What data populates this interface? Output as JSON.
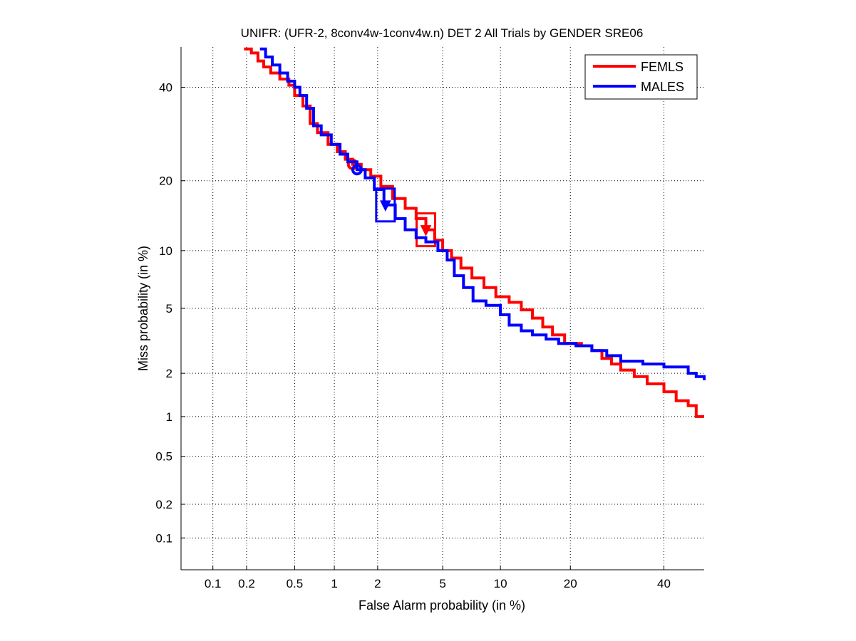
{
  "chart_data": {
    "type": "line",
    "title": "UNIFR: (UFR-2, 8conv4w-1conv4w.n) DET 2 All Trials by GENDER SRE06",
    "xlabel": "False Alarm probability (in %)",
    "ylabel": "Miss probability (in %)",
    "scale": "probit (normal deviate)",
    "xlim": [
      0.05,
      50
    ],
    "ylim": [
      0.05,
      50
    ],
    "grid": true,
    "x_ticks": [
      0.1,
      0.2,
      0.5,
      1,
      2,
      5,
      10,
      20,
      40
    ],
    "x_tick_labels": [
      "0.1",
      "0.2",
      "0.5",
      "1",
      "2",
      "5",
      "10",
      "20",
      "40"
    ],
    "y_ticks": [
      0.1,
      0.2,
      0.5,
      1,
      2,
      5,
      10,
      20,
      40
    ],
    "y_tick_labels": [
      "0.1",
      "0.2",
      "0.5",
      "1",
      "2",
      "5",
      "10",
      "20",
      "40"
    ],
    "legend": {
      "position": "top-right",
      "entries": [
        "FEMLS",
        "MALES"
      ]
    },
    "series": [
      {
        "name": "FEMLS",
        "color": "#ff0000",
        "points": [
          [
            0.19,
            49.5
          ],
          [
            0.22,
            48.5
          ],
          [
            0.25,
            46.5
          ],
          [
            0.28,
            45.0
          ],
          [
            0.32,
            43.5
          ],
          [
            0.38,
            42.0
          ],
          [
            0.45,
            40.5
          ],
          [
            0.5,
            38.0
          ],
          [
            0.58,
            35.5
          ],
          [
            0.66,
            31.5
          ],
          [
            0.75,
            29.5
          ],
          [
            0.9,
            27.0
          ],
          [
            1.05,
            25.5
          ],
          [
            1.2,
            24.0
          ],
          [
            1.35,
            23.0
          ],
          [
            1.55,
            22.0
          ],
          [
            1.8,
            20.8
          ],
          [
            2.1,
            19.0
          ],
          [
            2.5,
            17.0
          ],
          [
            3.0,
            15.5
          ],
          [
            3.5,
            14.0
          ],
          [
            4.0,
            12.5
          ],
          [
            4.5,
            11.2
          ],
          [
            5.0,
            10.0
          ],
          [
            5.6,
            9.2
          ],
          [
            6.3,
            8.2
          ],
          [
            7.2,
            7.3
          ],
          [
            8.3,
            6.5
          ],
          [
            9.5,
            5.8
          ],
          [
            11.0,
            5.4
          ],
          [
            12.5,
            4.9
          ],
          [
            14.0,
            4.4
          ],
          [
            15.5,
            3.9
          ],
          [
            17.0,
            3.5
          ],
          [
            19.0,
            3.1
          ],
          [
            22.0,
            3.0
          ],
          [
            24.0,
            2.8
          ],
          [
            26.0,
            2.5
          ],
          [
            28.0,
            2.3
          ],
          [
            30.0,
            2.1
          ],
          [
            33.0,
            1.9
          ],
          [
            36.0,
            1.7
          ],
          [
            40.0,
            1.5
          ],
          [
            43.0,
            1.3
          ],
          [
            46.0,
            1.2
          ],
          [
            48.0,
            1.0
          ],
          [
            50.0,
            1.0
          ]
        ],
        "min_dcf_point": [
          1.35,
          23.0
        ],
        "actual_dcf_box": [
          4.0,
          12.5
        ]
      },
      {
        "name": "MALES",
        "color": "#0000ff",
        "points": [
          [
            0.26,
            49.5
          ],
          [
            0.29,
            47.5
          ],
          [
            0.33,
            45.5
          ],
          [
            0.38,
            43.5
          ],
          [
            0.44,
            41.5
          ],
          [
            0.5,
            40.0
          ],
          [
            0.55,
            38.0
          ],
          [
            0.62,
            35.0
          ],
          [
            0.7,
            31.0
          ],
          [
            0.8,
            29.0
          ],
          [
            0.95,
            27.0
          ],
          [
            1.1,
            25.0
          ],
          [
            1.25,
            23.5
          ],
          [
            1.45,
            22.0
          ],
          [
            1.65,
            20.5
          ],
          [
            1.9,
            18.5
          ],
          [
            2.2,
            16.0
          ],
          [
            2.6,
            14.0
          ],
          [
            3.0,
            12.5
          ],
          [
            3.5,
            11.5
          ],
          [
            4.0,
            11.0
          ],
          [
            4.7,
            10.0
          ],
          [
            5.3,
            9.0
          ],
          [
            5.8,
            7.5
          ],
          [
            6.5,
            6.5
          ],
          [
            7.3,
            5.5
          ],
          [
            8.5,
            5.2
          ],
          [
            10.0,
            4.6
          ],
          [
            11.0,
            4.0
          ],
          [
            12.5,
            3.7
          ],
          [
            14.0,
            3.5
          ],
          [
            16.0,
            3.3
          ],
          [
            18.0,
            3.1
          ],
          [
            21.0,
            3.0
          ],
          [
            24.0,
            2.8
          ],
          [
            27.0,
            2.6
          ],
          [
            30.0,
            2.4
          ],
          [
            35.0,
            2.3
          ],
          [
            40.0,
            2.2
          ],
          [
            44.0,
            2.2
          ],
          [
            46.0,
            2.0
          ],
          [
            48.0,
            1.9
          ],
          [
            50.0,
            1.8
          ]
        ],
        "min_dcf_point": [
          1.45,
          22.0
        ],
        "actual_dcf_box": [
          2.25,
          16.0
        ]
      }
    ]
  }
}
